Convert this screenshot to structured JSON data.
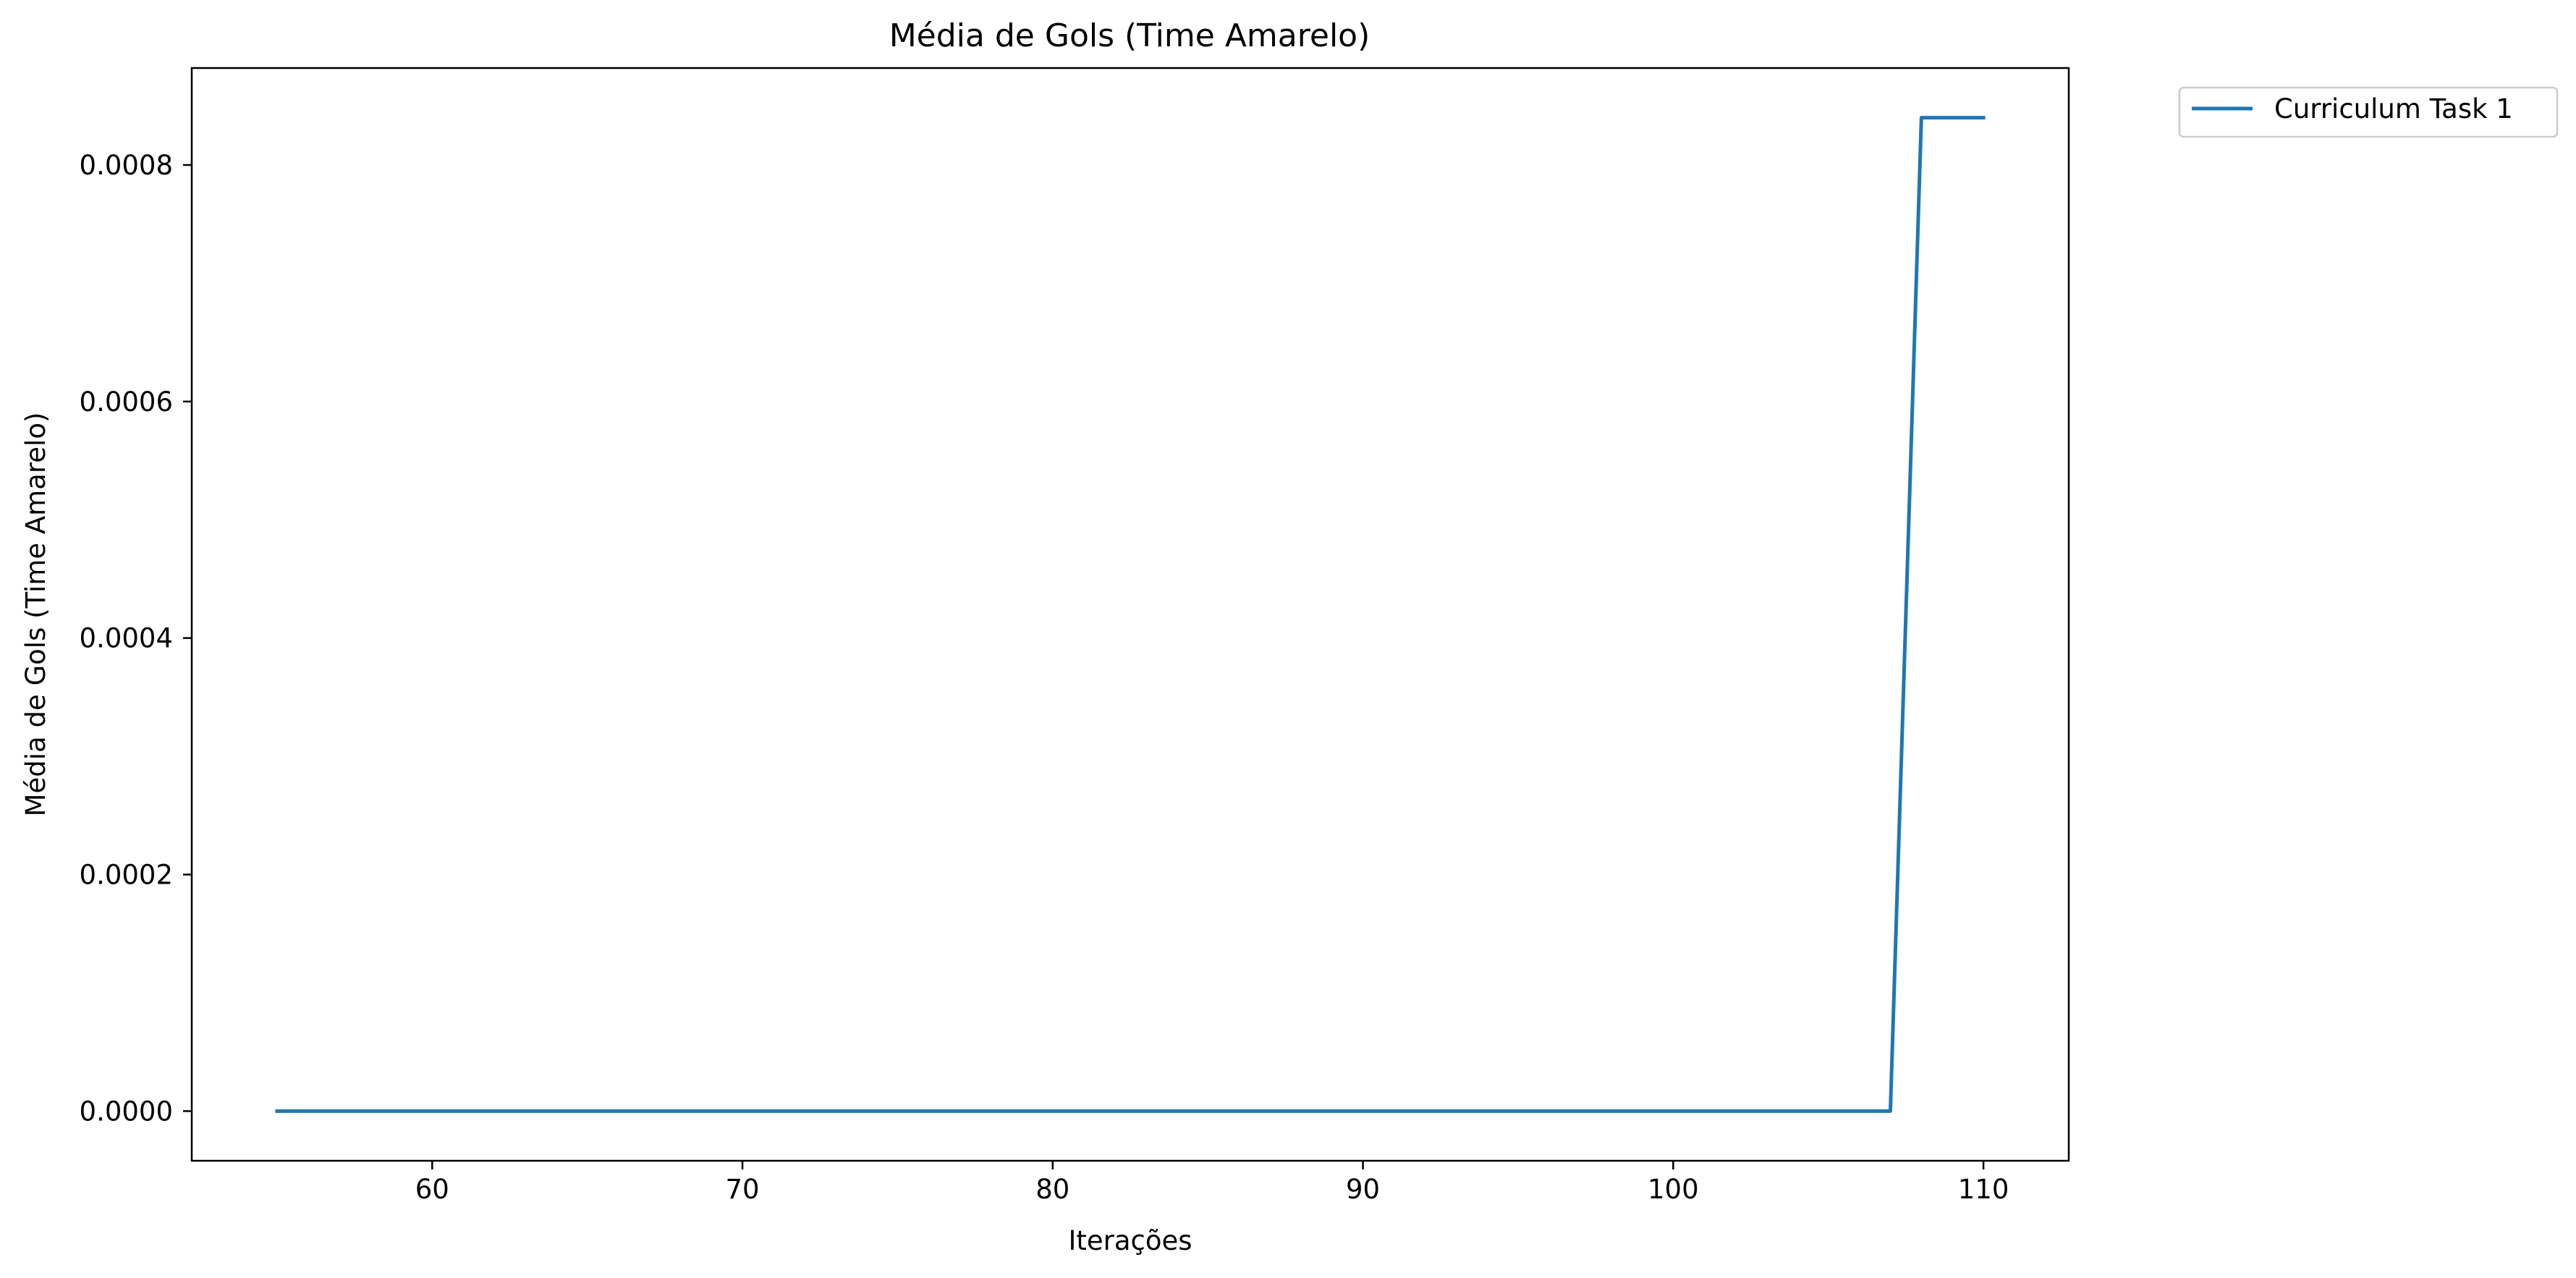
{
  "chart_data": {
    "type": "line",
    "title": "Média de Gols (Time Amarelo)",
    "xlabel": "Iterações",
    "ylabel": "Média de Gols (Time Amarelo)",
    "xlim": [
      52.25,
      112.75
    ],
    "ylim": [
      -4.2e-05,
      0.000882
    ],
    "x_ticks": [
      60,
      70,
      80,
      90,
      100,
      110
    ],
    "x_tick_labels": [
      "60",
      "70",
      "80",
      "90",
      "100",
      "110"
    ],
    "y_ticks": [
      0.0,
      0.0002,
      0.0004,
      0.0006,
      0.0008
    ],
    "y_tick_labels": [
      "0.0000",
      "0.0002",
      "0.0004",
      "0.0006",
      "0.0008"
    ],
    "grid": false,
    "legend_position": "outside-top-right",
    "series": [
      {
        "name": "Curriculum Task 1",
        "color": "#1f77b4",
        "x": [
          55,
          107,
          108,
          110
        ],
        "y": [
          0.0,
          0.0,
          0.00084,
          0.00084
        ]
      }
    ]
  }
}
